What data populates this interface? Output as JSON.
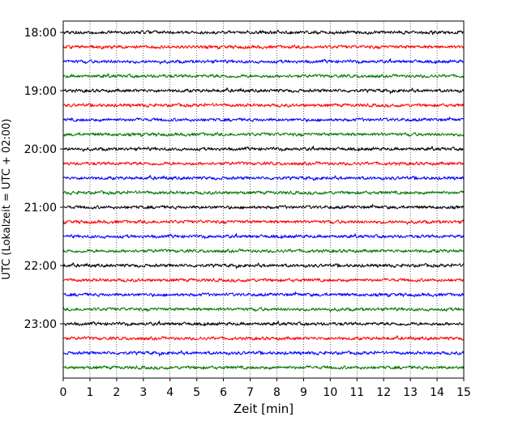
{
  "chart_data": {
    "type": "line",
    "title": "",
    "xlabel": "Zeit  [min]",
    "ylabel": "UTC (Lokalzeit = UTC + 02:00)",
    "xlim": [
      0,
      15
    ],
    "x_ticks": [
      0,
      1,
      2,
      3,
      4,
      5,
      6,
      7,
      8,
      9,
      10,
      11,
      12,
      13,
      14,
      15
    ],
    "y_ticks": [
      "18:00",
      "19:00",
      "20:00",
      "21:00",
      "22:00",
      "23:00"
    ],
    "y_tick_trace_index": [
      0,
      4,
      8,
      12,
      16,
      20
    ],
    "trace_start_time": "18:00",
    "trace_interval_min": 15,
    "trace_count": 24,
    "trace_colors": [
      "#000000",
      "#ff0000",
      "#0000ff",
      "#007700"
    ],
    "vertical_grid": "dotted",
    "legend": "none"
  }
}
